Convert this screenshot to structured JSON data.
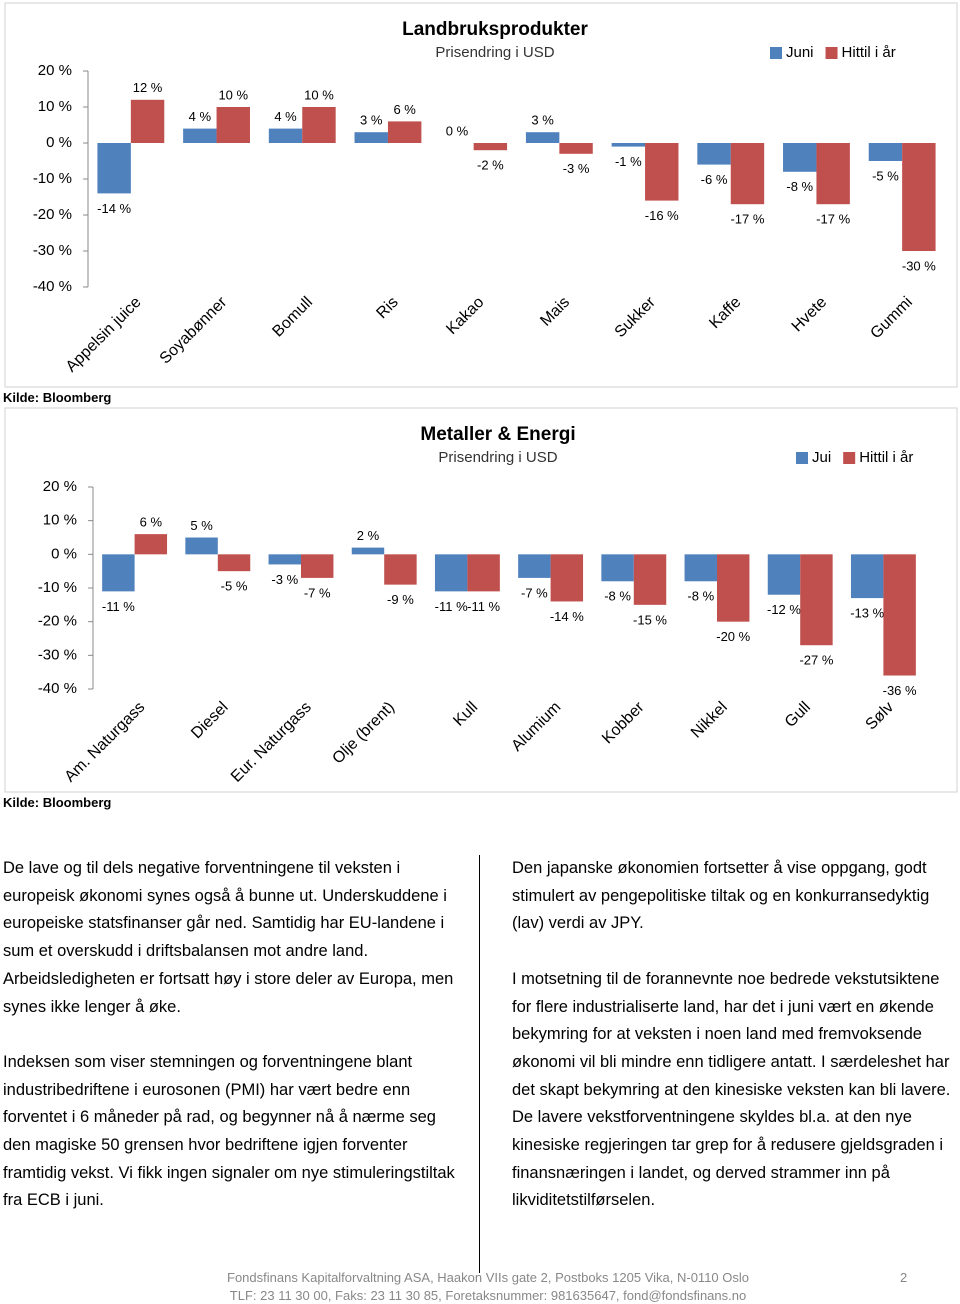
{
  "chart_data": [
    {
      "type": "bar",
      "title": "Landbruksprodukter",
      "subtitle": "Prisendring i USD",
      "source": "Kilde: Bloomberg",
      "categories": [
        "Appelsin juice",
        "Soyabønner",
        "Bomull",
        "Ris",
        "Kakao",
        "Mais",
        "Sukker",
        "Kaffe",
        "Hvete",
        "Gummi"
      ],
      "series": [
        {
          "name": "Juni",
          "color": "#4f81bd",
          "values": [
            -14,
            4,
            4,
            3,
            0,
            3,
            -1,
            -6,
            -8,
            -5
          ],
          "value_labels": [
            "-14 %",
            "4 %",
            "4 %",
            "3 %",
            "0 %",
            "3 %",
            "-1 %",
            "-6 %",
            "-8 %",
            "-5 %"
          ]
        },
        {
          "name": "Hittil i år",
          "color": "#c0504d",
          "values": [
            12,
            10,
            10,
            6,
            -2,
            -3,
            -16,
            -17,
            -17,
            -30
          ],
          "value_labels": [
            "12 %",
            "10 %",
            "10 %",
            "6 %",
            "-2 %",
            "-3 %",
            "-16 %",
            "-17 %",
            "-17 %",
            "-30 %"
          ]
        }
      ],
      "ylim": [
        -40,
        20
      ],
      "yticks": [
        {
          "value": -40,
          "label": "-40 %"
        },
        {
          "value": -30,
          "label": "-30 %"
        },
        {
          "value": -20,
          "label": "-20 %"
        },
        {
          "value": -10,
          "label": "-10 %"
        },
        {
          "value": 0,
          "label": "0 %"
        },
        {
          "value": 10,
          "label": "10 %"
        },
        {
          "value": 20,
          "label": "20 %"
        }
      ],
      "legend": "top-right"
    },
    {
      "type": "bar",
      "title": "Metaller & Energi",
      "subtitle": "Prisendring i USD",
      "source": "Kilde: Bloomberg",
      "categories": [
        "Am. Naturgass",
        "Diesel",
        "Eur. Naturgass",
        "Olje (brent)",
        "Kull",
        "Alumium",
        "Kobber",
        "Nikkel",
        "Gull",
        "Sølv"
      ],
      "series": [
        {
          "name": "Jui",
          "color": "#4f81bd",
          "values": [
            -11,
            5,
            -3,
            2,
            -11,
            -7,
            -8,
            -8,
            -12,
            -13
          ],
          "value_labels": [
            "-11 %",
            "5 %",
            "-3 %",
            "2 %",
            "-11 %",
            "-7 %",
            "-8 %",
            "-8 %",
            "-12 %",
            "-13 %"
          ]
        },
        {
          "name": "Hittil i år",
          "color": "#c0504d",
          "values": [
            6,
            -5,
            -7,
            -9,
            -11,
            -14,
            -15,
            -20,
            -27,
            -36
          ],
          "value_labels": [
            "6 %",
            "-5 %",
            "-7 %",
            "-9 %",
            "-11 %",
            "-14 %",
            "-15 %",
            "-20 %",
            "-27 %",
            "-36 %"
          ]
        }
      ],
      "ylim": [
        -40,
        20
      ],
      "yticks": [
        {
          "value": -40,
          "label": "-40 %"
        },
        {
          "value": -30,
          "label": "-30 %"
        },
        {
          "value": -20,
          "label": "-20 %"
        },
        {
          "value": -10,
          "label": "-10 %"
        },
        {
          "value": 0,
          "label": "0 %"
        },
        {
          "value": 10,
          "label": "10 %"
        },
        {
          "value": 20,
          "label": "20 %"
        }
      ],
      "legend": "top-right"
    }
  ],
  "text": {
    "left": [
      "De lave og til dels negative forventningene til veksten i europeisk økonomi synes også å bunne ut. Underskuddene i europeiske statsfinanser går ned. Samtidig har EU-landene i sum et overskudd i driftsbalansen mot andre land. Arbeidsledigheten er fortsatt høy i store deler av Europa, men synes ikke lenger å øke.",
      "Indeksen som viser stemningen og forventningene blant industribedriftene i eurosonen (PMI) har vært bedre enn forventet i 6 måneder på rad, og begynner nå å nærme seg den magiske 50 grensen hvor bedriftene igjen forventer framtidig vekst. Vi fikk ingen signaler om nye stimuleringstiltak fra ECB i juni."
    ],
    "right": [
      "Den japanske økonomien fortsetter å vise oppgang, godt stimulert av pengepolitiske tiltak og en konkurransedyktig (lav) verdi av JPY.",
      "I motsetning til de forannevnte noe bedrede vekstutsiktene for flere industrialiserte land, har det i juni vært en økende bekymring for at veksten i noen land med fremvoksende økonomi vil bli mindre enn tidligere antatt. I særdeleshet har det skapt bekymring at den kinesiske veksten kan bli lavere. De lavere vekstforventningene skyldes bl.a. at den nye kinesiske regjeringen tar grep for å redusere gjeldsgraden i finansnæringen i landet, og derved strammer inn på likviditetstilførselen."
    ]
  },
  "footer": {
    "line1": "Fondsfinans Kapitalforvaltning ASA, Haakon VIIs gate 2, Postboks 1205 Vika, N-0110 Oslo",
    "line2": "TLF: 23 11 30 00, Faks: 23 11 30 85, Foretaksnummer: 981635647, fond@fondsfinans.no",
    "page": "2"
  }
}
